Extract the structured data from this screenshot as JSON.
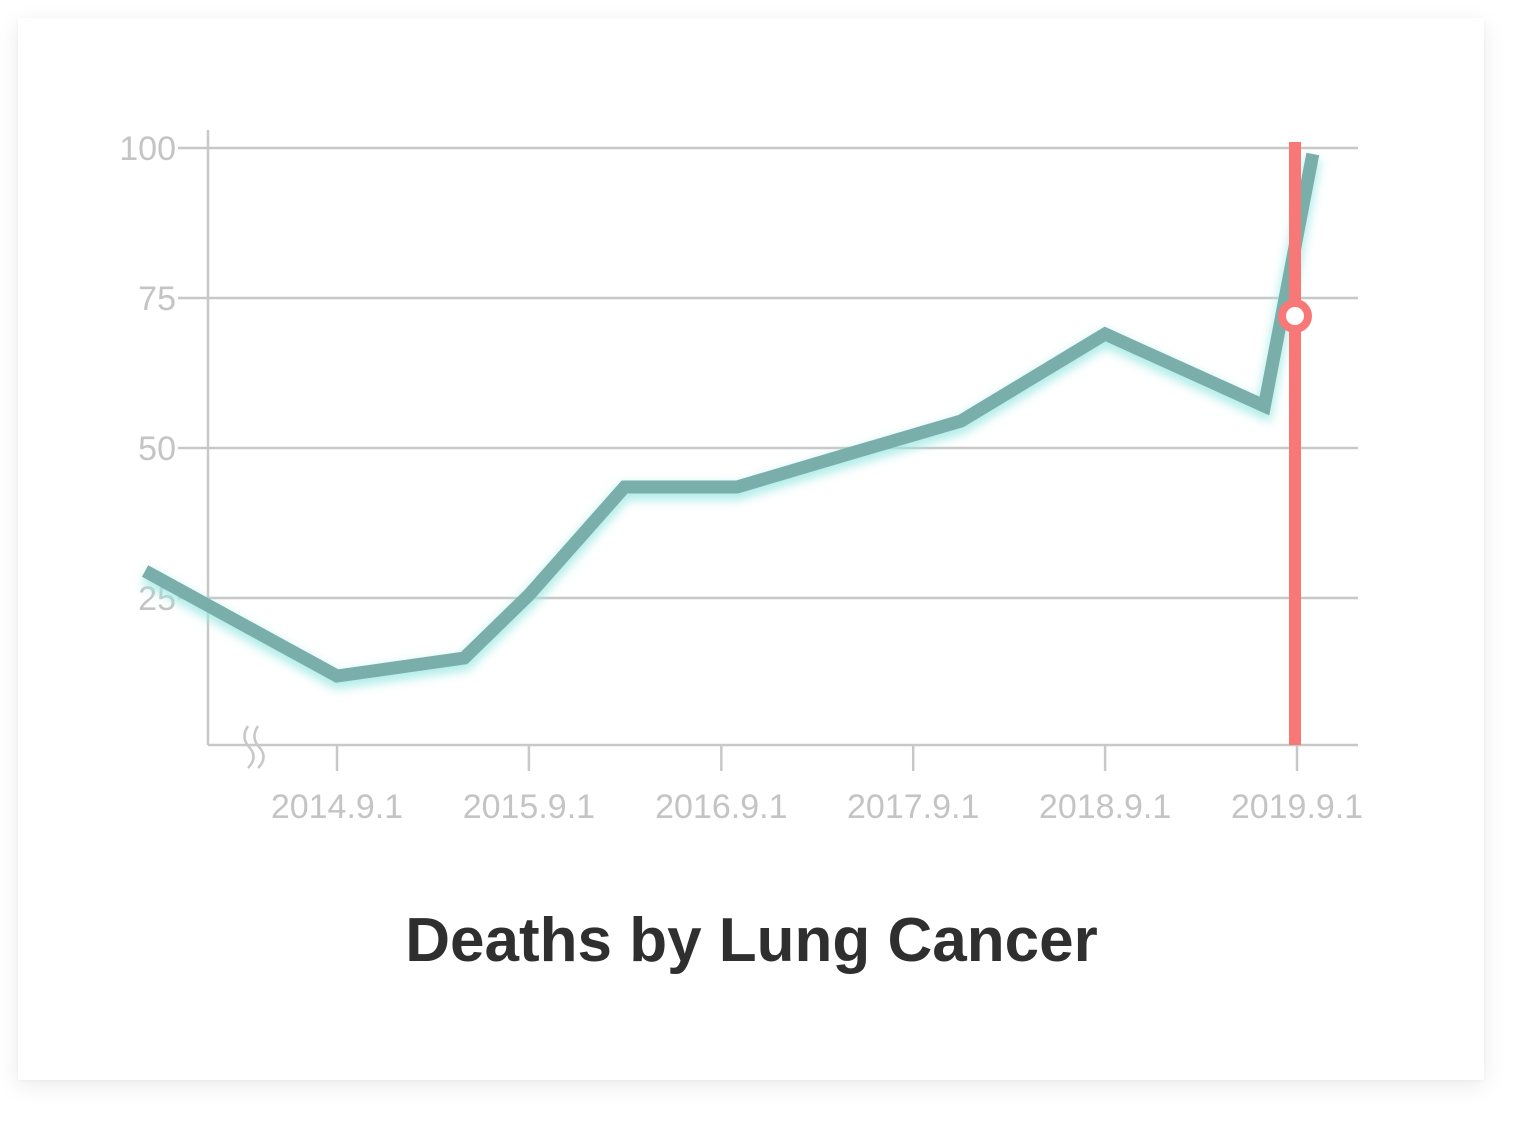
{
  "chart_data": {
    "type": "line",
    "title": "Deaths by Lung Cancer",
    "xlabel": "",
    "ylabel": "",
    "x_ticks": [
      "2014.9.1",
      "2015.9.1",
      "2016.9.1",
      "2017.9.1",
      "2018.9.1",
      "2019.9.1"
    ],
    "y_ticks": [
      "25",
      "50",
      "75",
      "100"
    ],
    "ylim": [
      0,
      100
    ],
    "xlim": [
      "2013.9.1",
      "2019.10.1"
    ],
    "grid": true,
    "axis_break": true,
    "series": [
      {
        "x": [
          "2013.9.1",
          "2014.9.1",
          "2015.5.1",
          "2015.9.1",
          "2016.3.1",
          "2016.10.1",
          "2017.5.1",
          "2017.12.1",
          "2018.9.1",
          "2019.7.1",
          "2019.10.1"
        ],
        "values": [
          29.5,
          12,
          15,
          25.5,
          43.5,
          43.5,
          49,
          54.5,
          69,
          57,
          99
        ]
      }
    ],
    "highlight": {
      "x": "2019.9.1",
      "value": 72
    },
    "colors": {
      "line": "#7aaeab",
      "glow": "#9be8e3",
      "highlight": "#f87878",
      "grid": "#c8c8c8",
      "tick_text": "#c4c4c4",
      "title": "#2f2f2f"
    }
  }
}
